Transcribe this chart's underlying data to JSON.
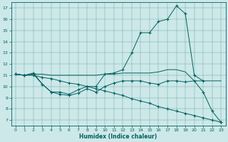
{
  "xlabel": "Humidex (Indice chaleur)",
  "xlim": [
    -0.5,
    23.5
  ],
  "ylim": [
    6.5,
    17.5
  ],
  "yticks": [
    7,
    8,
    9,
    10,
    11,
    12,
    13,
    14,
    15,
    16,
    17
  ],
  "xticks": [
    0,
    1,
    2,
    3,
    4,
    5,
    6,
    7,
    8,
    9,
    10,
    11,
    12,
    13,
    14,
    15,
    16,
    17,
    18,
    19,
    20,
    21,
    22,
    23
  ],
  "bg_color": "#cde8e8",
  "line_color": "#006060",
  "lines": [
    {
      "x": [
        0,
        1,
        2,
        3,
        4,
        5,
        6,
        7,
        8,
        9,
        10,
        11,
        12,
        13,
        14,
        15,
        16,
        17,
        18,
        19,
        20,
        21
      ],
      "y": [
        11.1,
        11.0,
        11.2,
        10.2,
        9.5,
        9.5,
        9.3,
        9.7,
        10.0,
        10.0,
        11.1,
        11.2,
        11.5,
        13.0,
        14.8,
        14.8,
        15.8,
        16.0,
        17.2,
        16.5,
        11.0,
        10.5
      ],
      "marker": true
    },
    {
      "x": [
        0,
        1,
        2,
        3,
        4,
        5,
        6,
        7,
        8,
        9,
        10,
        11,
        12,
        13,
        14,
        15,
        16,
        17,
        18,
        19,
        20,
        21,
        22,
        23
      ],
      "y": [
        11.1,
        11.0,
        11.1,
        11.1,
        11.0,
        11.0,
        11.0,
        11.0,
        11.0,
        11.0,
        11.1,
        11.1,
        11.2,
        11.2,
        11.2,
        11.2,
        11.3,
        11.5,
        11.5,
        11.3,
        10.5,
        10.5,
        10.5,
        10.5
      ],
      "marker": false
    },
    {
      "x": [
        0,
        1,
        2,
        3,
        4,
        5,
        6,
        7,
        8,
        9,
        10,
        11,
        12,
        13,
        14,
        15,
        16,
        17,
        18,
        19,
        20,
        21,
        22,
        23
      ],
      "y": [
        11.1,
        11.0,
        11.1,
        10.2,
        9.5,
        9.3,
        9.2,
        9.4,
        9.8,
        9.5,
        10.0,
        10.3,
        10.5,
        10.5,
        10.5,
        10.3,
        10.2,
        10.5,
        10.5,
        10.4,
        10.5,
        9.5,
        7.8,
        6.8
      ],
      "marker": true
    },
    {
      "x": [
        0,
        1,
        2,
        3,
        4,
        5,
        6,
        7,
        8,
        9,
        10,
        11,
        12,
        13,
        14,
        15,
        16,
        17,
        18,
        19,
        20,
        21,
        22,
        23
      ],
      "y": [
        11.1,
        11.0,
        11.0,
        10.8,
        10.7,
        10.5,
        10.3,
        10.2,
        10.0,
        9.8,
        9.6,
        9.4,
        9.2,
        8.9,
        8.7,
        8.5,
        8.2,
        8.0,
        7.8,
        7.6,
        7.4,
        7.2,
        7.0,
        6.8
      ],
      "marker": true
    }
  ]
}
